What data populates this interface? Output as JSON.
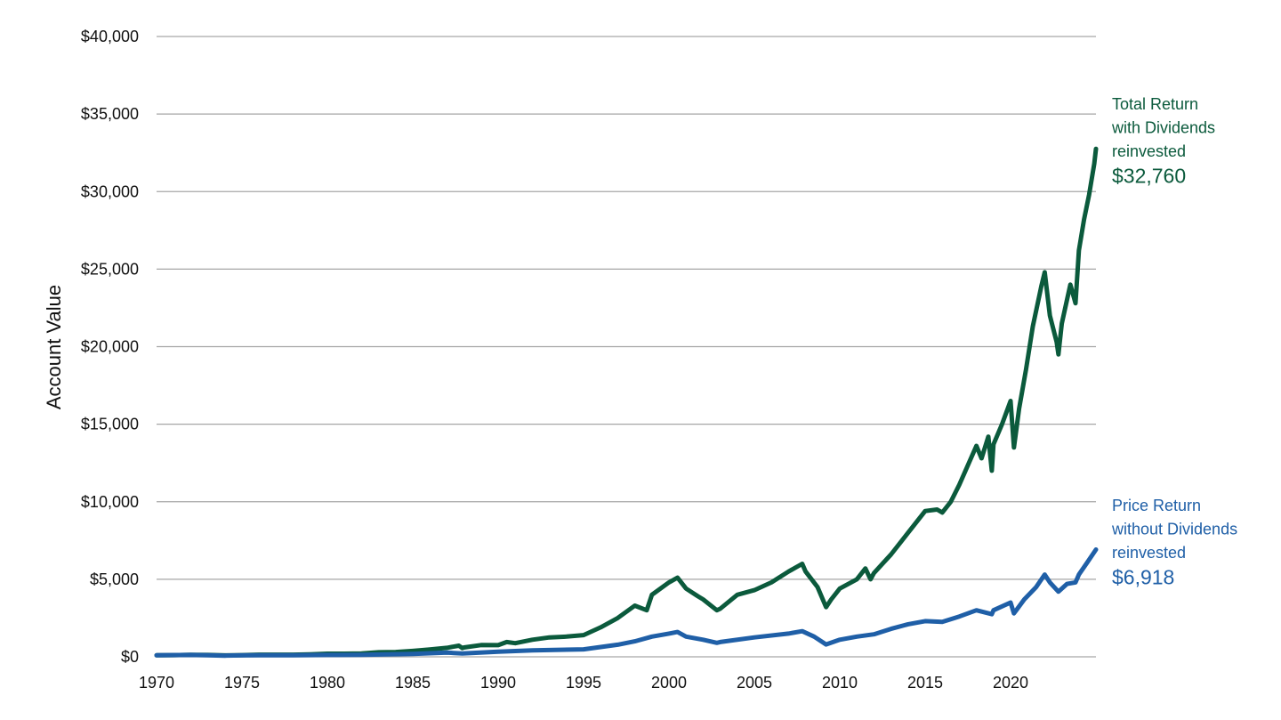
{
  "chart_data": {
    "type": "line",
    "ylabel": "Account Value",
    "xlim": [
      1970,
      2025
    ],
    "ylim": [
      0,
      40000
    ],
    "grid": true,
    "x_ticks": [
      "1970",
      "1975",
      "1980",
      "1985",
      "1990",
      "1995",
      "2000",
      "2005",
      "2010",
      "2015",
      "2020"
    ],
    "y_ticks": [
      "$0",
      "$5,000",
      "$10,000",
      "$15,000",
      "$20,000",
      "$25,000",
      "$30,000",
      "$35,000",
      "$40,000"
    ],
    "series": [
      {
        "name": "Total Return with Dividends reinvested",
        "label_lines": [
          "Total Return",
          "with Dividends",
          "reinvested"
        ],
        "final_label": "$32,760",
        "color": "#0b5a3c",
        "points": [
          [
            1970,
            100
          ],
          [
            1971,
            110
          ],
          [
            1972,
            130
          ],
          [
            1973,
            120
          ],
          [
            1974,
            90
          ],
          [
            1975,
            110
          ],
          [
            1976,
            140
          ],
          [
            1977,
            135
          ],
          [
            1978,
            140
          ],
          [
            1979,
            160
          ],
          [
            1980,
            200
          ],
          [
            1981,
            200
          ],
          [
            1982,
            220
          ],
          [
            1983,
            290
          ],
          [
            1984,
            310
          ],
          [
            1985,
            380
          ],
          [
            1986,
            470
          ],
          [
            1987,
            580
          ],
          [
            1987.7,
            720
          ],
          [
            1987.9,
            560
          ],
          [
            1988,
            600
          ],
          [
            1989,
            760
          ],
          [
            1990,
            750
          ],
          [
            1990.5,
            950
          ],
          [
            1991,
            880
          ],
          [
            1992,
            1100
          ],
          [
            1993,
            1250
          ],
          [
            1994,
            1300
          ],
          [
            1995,
            1400
          ],
          [
            1996,
            1900
          ],
          [
            1997,
            2500
          ],
          [
            1998,
            3300
          ],
          [
            1998.7,
            3000
          ],
          [
            1999,
            4000
          ],
          [
            2000,
            4800
          ],
          [
            2000.5,
            5100
          ],
          [
            2001,
            4400
          ],
          [
            2001.7,
            3900
          ],
          [
            2002,
            3700
          ],
          [
            2002.8,
            3000
          ],
          [
            2003,
            3100
          ],
          [
            2004,
            4000
          ],
          [
            2005,
            4300
          ],
          [
            2006,
            4800
          ],
          [
            2007,
            5500
          ],
          [
            2007.8,
            6000
          ],
          [
            2008,
            5500
          ],
          [
            2008.7,
            4500
          ],
          [
            2009.2,
            3200
          ],
          [
            2009.5,
            3700
          ],
          [
            2010,
            4400
          ],
          [
            2011,
            5000
          ],
          [
            2011.5,
            5700
          ],
          [
            2011.8,
            5000
          ],
          [
            2012,
            5400
          ],
          [
            2013,
            6600
          ],
          [
            2014,
            8000
          ],
          [
            2015,
            9400
          ],
          [
            2015.7,
            9500
          ],
          [
            2016,
            9300
          ],
          [
            2016.5,
            10000
          ],
          [
            2017,
            11100
          ],
          [
            2018,
            13600
          ],
          [
            2018.3,
            12800
          ],
          [
            2018.7,
            14200
          ],
          [
            2018.9,
            12000
          ],
          [
            2019,
            13700
          ],
          [
            2019.5,
            15000
          ],
          [
            2020,
            16500
          ],
          [
            2020.2,
            13500
          ],
          [
            2020.5,
            16000
          ],
          [
            2020.9,
            18500
          ],
          [
            2021.3,
            21300
          ],
          [
            2021.8,
            23900
          ],
          [
            2022,
            24800
          ],
          [
            2022.3,
            22000
          ],
          [
            2022.7,
            20300
          ],
          [
            2022.8,
            19500
          ],
          [
            2023,
            21500
          ],
          [
            2023.5,
            24000
          ],
          [
            2023.8,
            22800
          ],
          [
            2024,
            26200
          ],
          [
            2024.3,
            28200
          ],
          [
            2024.6,
            29800
          ],
          [
            2024.9,
            31800
          ],
          [
            2025,
            32760
          ]
        ]
      },
      {
        "name": "Price Return without Dividends reinvested",
        "label_lines": [
          "Price Return",
          "without Dividends",
          "reinvested"
        ],
        "final_label": "$6,918",
        "color": "#1f5fa7",
        "points": [
          [
            1970,
            100
          ],
          [
            1972,
            120
          ],
          [
            1973,
            105
          ],
          [
            1974,
            75
          ],
          [
            1975,
            90
          ],
          [
            1976,
            105
          ],
          [
            1978,
            100
          ],
          [
            1980,
            120
          ],
          [
            1982,
            130
          ],
          [
            1985,
            190
          ],
          [
            1987,
            270
          ],
          [
            1987.9,
            220
          ],
          [
            1990,
            330
          ],
          [
            1992,
            420
          ],
          [
            1995,
            480
          ],
          [
            1997,
            780
          ],
          [
            1998,
            1000
          ],
          [
            1999,
            1300
          ],
          [
            2000,
            1500
          ],
          [
            2000.5,
            1600
          ],
          [
            2001,
            1300
          ],
          [
            2002,
            1100
          ],
          [
            2002.8,
            900
          ],
          [
            2003,
            950
          ],
          [
            2005,
            1250
          ],
          [
            2007,
            1500
          ],
          [
            2007.8,
            1650
          ],
          [
            2008.5,
            1300
          ],
          [
            2009.2,
            800
          ],
          [
            2010,
            1100
          ],
          [
            2011,
            1300
          ],
          [
            2012,
            1450
          ],
          [
            2013,
            1800
          ],
          [
            2014,
            2100
          ],
          [
            2015,
            2300
          ],
          [
            2016,
            2250
          ],
          [
            2017,
            2600
          ],
          [
            2018,
            3000
          ],
          [
            2018.9,
            2750
          ],
          [
            2019,
            3000
          ],
          [
            2020,
            3500
          ],
          [
            2020.2,
            2800
          ],
          [
            2020.8,
            3700
          ],
          [
            2021.5,
            4500
          ],
          [
            2022,
            5300
          ],
          [
            2022.3,
            4800
          ],
          [
            2022.8,
            4200
          ],
          [
            2023.3,
            4700
          ],
          [
            2023.8,
            4800
          ],
          [
            2024,
            5300
          ],
          [
            2024.5,
            6100
          ],
          [
            2025,
            6918
          ]
        ]
      }
    ]
  }
}
